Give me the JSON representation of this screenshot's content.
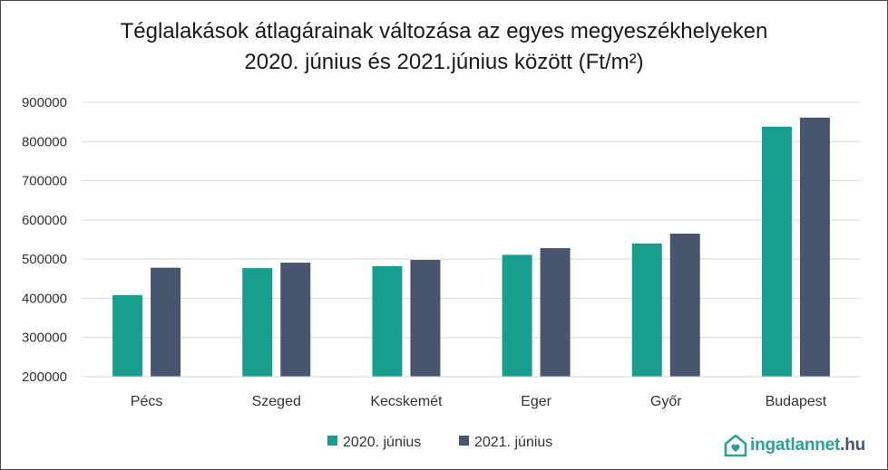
{
  "chart_data": {
    "type": "bar",
    "title_line1": "Téglalakások átlagárainak változása az egyes megyeszékhelyeken",
    "title_line2": "2020. június és 2021.június  között (Ft/m²)",
    "categories": [
      "Pécs",
      "Szeged",
      "Kecskemét",
      "Eger",
      "Győr",
      "Budapest"
    ],
    "series": [
      {
        "name": "2020. június",
        "color": "#179e8e",
        "values": [
          408000,
          477000,
          482000,
          511000,
          540000,
          838000
        ]
      },
      {
        "name": "2021. június",
        "color": "#47556f",
        "values": [
          478000,
          491000,
          498000,
          528000,
          565000,
          861000
        ]
      }
    ],
    "ylim": [
      200000,
      900000
    ],
    "yticks": [
      "200000",
      "300000",
      "400000",
      "500000",
      "600000",
      "700000",
      "800000",
      "900000"
    ],
    "grid": true,
    "legend_position": "bottom"
  },
  "logo": {
    "name": "ingatlannet",
    "domain": ".hu",
    "color": "#2aa198"
  }
}
